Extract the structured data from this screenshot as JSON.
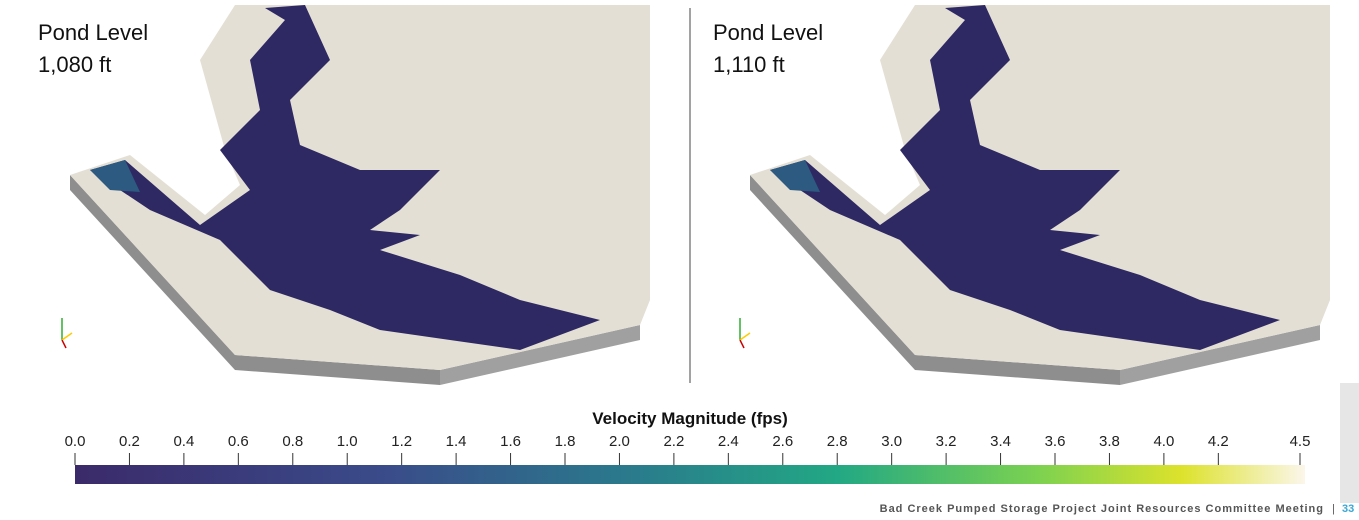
{
  "panels": [
    {
      "title": "Pond Level",
      "level": "1,080 ft"
    },
    {
      "title": "Pond Level",
      "level": "1,110 ft"
    }
  ],
  "colorbar": {
    "title": "Velocity Magnitude (fps)",
    "range": [
      0,
      4.5
    ],
    "ticks": [
      {
        "value": 0,
        "label": "0.0"
      },
      {
        "value": 0.2,
        "label": "0.2"
      },
      {
        "value": 0.4,
        "label": "0.4"
      },
      {
        "value": 0.6,
        "label": "0.6"
      },
      {
        "value": 0.8,
        "label": "0.8"
      },
      {
        "value": 1,
        "label": "1.0"
      },
      {
        "value": 1.2,
        "label": "1.2"
      },
      {
        "value": 1.4,
        "label": "1.4"
      },
      {
        "value": 1.6,
        "label": "1.6"
      },
      {
        "value": 1.8,
        "label": "1.8"
      },
      {
        "value": 2,
        "label": "2.0"
      },
      {
        "value": 2.2,
        "label": "2.2"
      },
      {
        "value": 2.4,
        "label": "2.4"
      },
      {
        "value": 2.6,
        "label": "2.6"
      },
      {
        "value": 2.8,
        "label": "2.8"
      },
      {
        "value": 3,
        "label": "3.0"
      },
      {
        "value": 3.2,
        "label": "3.2"
      },
      {
        "value": 3.4,
        "label": "3.4"
      },
      {
        "value": 3.6,
        "label": "3.6"
      },
      {
        "value": 3.8,
        "label": "3.8"
      },
      {
        "value": 4,
        "label": "4.0"
      },
      {
        "value": 4.2,
        "label": "4.2"
      },
      {
        "value": 4.5,
        "label": "4.5"
      }
    ]
  },
  "footer": {
    "text": "Bad Creek Pumped Storage Project Joint Resources Committee Meeting",
    "page": "33"
  }
}
